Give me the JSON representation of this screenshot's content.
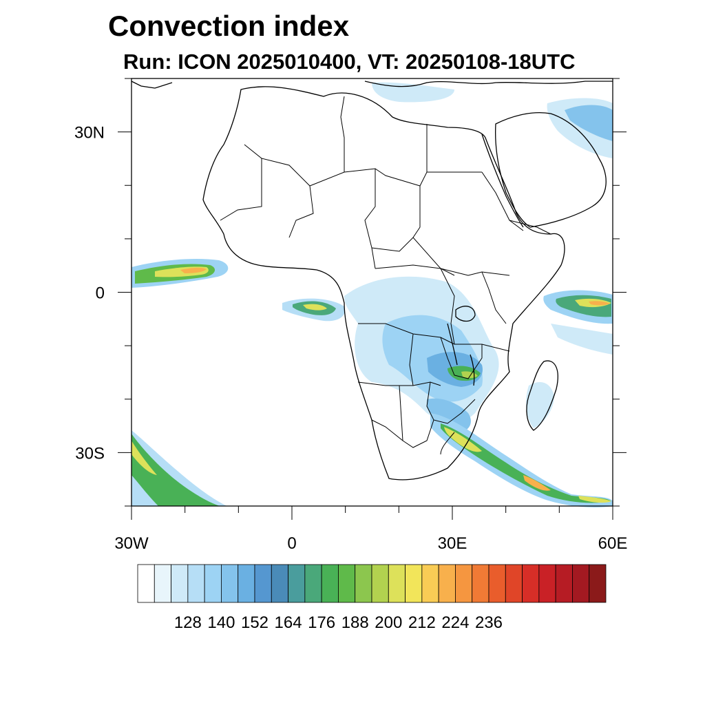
{
  "title": "Convection index",
  "subtitle": "Run: ICON 2025010400,  VT: 20250108-18UTC",
  "map": {
    "lon_range": [
      -30,
      60
    ],
    "lat_range": [
      -40,
      40
    ],
    "lon_ticks": [
      {
        "value": -30,
        "label": "30W"
      },
      {
        "value": 0,
        "label": "0"
      },
      {
        "value": 30,
        "label": "30E"
      },
      {
        "value": 60,
        "label": "60E"
      }
    ],
    "lat_ticks": [
      {
        "value": 30,
        "label": "30N"
      },
      {
        "value": 0,
        "label": "0"
      },
      {
        "value": -30,
        "label": "30S"
      }
    ],
    "coastline_color": "#000000",
    "features": [
      {
        "name": "africa-coastline"
      },
      {
        "name": "madagascar"
      },
      {
        "name": "arabian-peninsula"
      },
      {
        "name": "country-borders"
      }
    ]
  },
  "colorbar": {
    "label_values": [
      "128",
      "140",
      "152",
      "164",
      "176",
      "188",
      "200",
      "212",
      "224",
      "236"
    ],
    "colors": [
      "#ffffff",
      "#e8f5fb",
      "#cfeaf8",
      "#b6def6",
      "#9dd3f4",
      "#84c3ec",
      "#6ab0e2",
      "#5597d0",
      "#4a8bb8",
      "#4a9d9d",
      "#4aa87a",
      "#49b156",
      "#5fba4a",
      "#8cc64e",
      "#b2d24f",
      "#dde15a",
      "#f2e55a",
      "#f9cc55",
      "#f8b04c",
      "#f59640",
      "#f07a35",
      "#e95d2c",
      "#e04528",
      "#d72e27",
      "#c92126",
      "#b61c24",
      "#a31921",
      "#8b1a1a"
    ]
  }
}
